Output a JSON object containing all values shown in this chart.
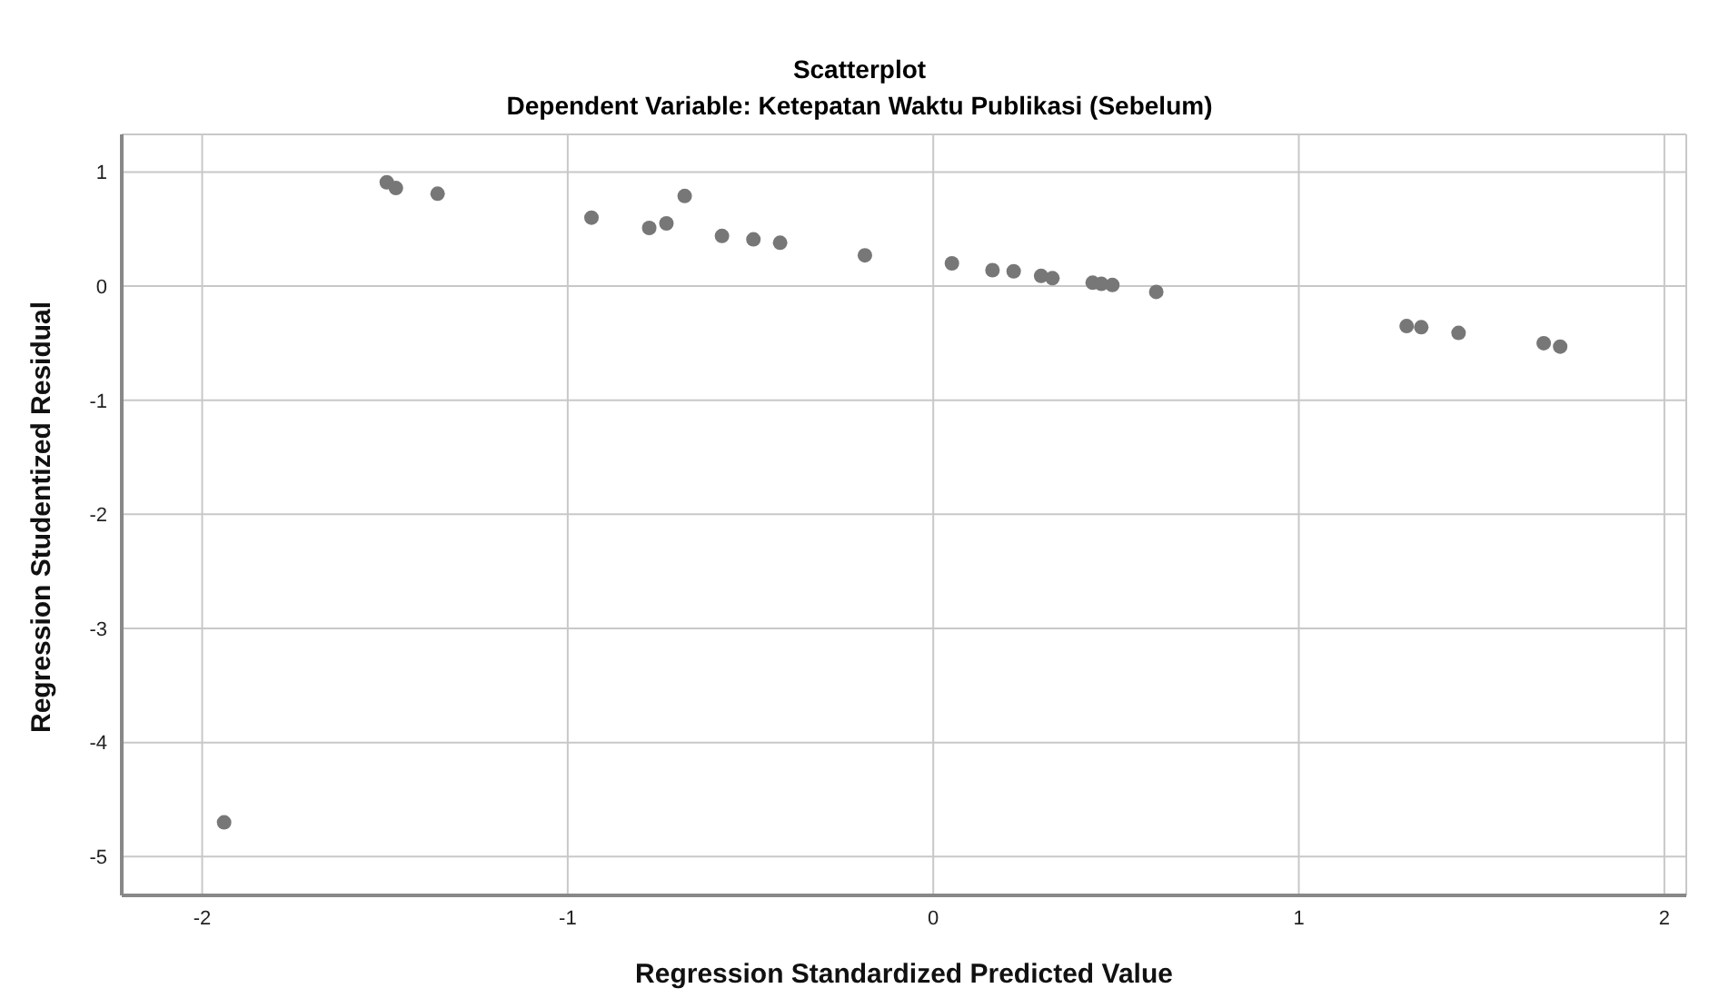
{
  "chart_data": {
    "type": "scatter",
    "title": "Scatterplot",
    "subtitle": "Dependent Variable: Ketepatan Waktu Publikasi (Sebelum)",
    "xlabel": "Regression Standardized Predicted Value",
    "ylabel": "Regression Studentized Residual",
    "x": [
      -1.94,
      -1.495,
      -1.47,
      -1.356,
      -0.935,
      -0.777,
      -0.73,
      -0.68,
      -0.578,
      -0.492,
      -0.419,
      -0.187,
      0.051,
      0.162,
      0.22,
      0.295,
      0.326,
      0.436,
      0.46,
      0.49,
      0.61,
      1.295,
      1.335,
      1.437,
      1.67,
      1.715
    ],
    "series": [
      {
        "color": "#777777",
        "values": [
          -4.7,
          0.91,
          0.86,
          0.81,
          0.6,
          0.51,
          0.55,
          0.79,
          0.44,
          0.41,
          0.38,
          0.27,
          0.2,
          0.14,
          0.13,
          0.09,
          0.07,
          0.03,
          0.02,
          0.01,
          -0.05,
          -0.35,
          -0.36,
          -0.41,
          -0.5,
          -0.53
        ]
      }
    ],
    "xlim": [
      -2.22,
      2.06
    ],
    "ylim": [
      -5.34,
      1.33
    ],
    "xticks": [
      -2,
      -1,
      0,
      1,
      2
    ],
    "yticks": [
      -5,
      -4,
      -3,
      -2,
      -1,
      0,
      1
    ],
    "grid": true,
    "marker": "circle"
  }
}
